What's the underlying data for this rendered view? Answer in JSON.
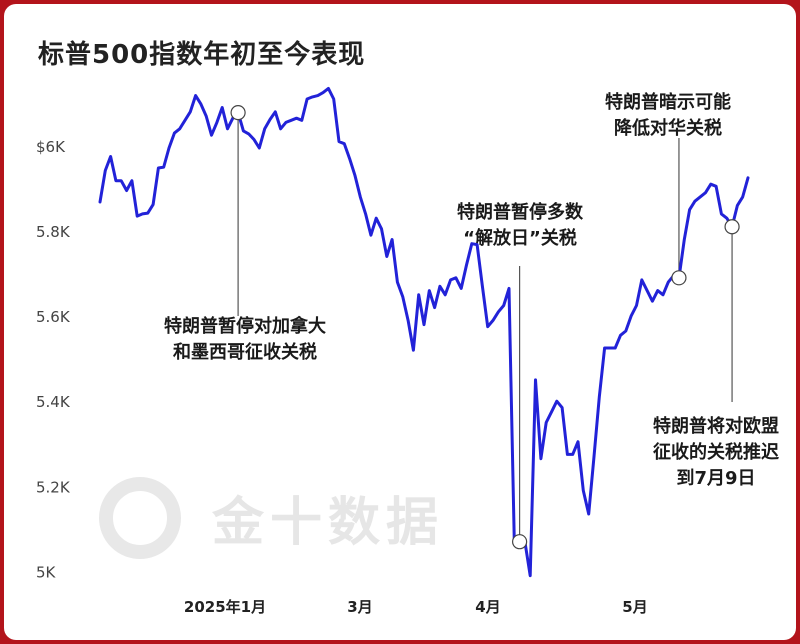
{
  "chart_data": {
    "type": "line",
    "title": "标普500指数年初至今表现",
    "ylim": [
      4980,
      6150
    ],
    "y_ticks": [
      {
        "value": 6000,
        "label": "$6K"
      },
      {
        "value": 5800,
        "label": "5.8K"
      },
      {
        "value": 5600,
        "label": "5.6K"
      },
      {
        "value": 5400,
        "label": "5.4K"
      },
      {
        "value": 5200,
        "label": "5.2K"
      },
      {
        "value": 5000,
        "label": "5K"
      }
    ],
    "x_ticks": [
      "2025年1月",
      "3月",
      "4月",
      "5月"
    ],
    "series": [
      {
        "name": "",
        "color": "#2222d8",
        "values": [
          5868,
          5942,
          5975,
          5918,
          5918,
          5895,
          5918,
          5835,
          5840,
          5842,
          5862,
          5948,
          5950,
          5995,
          6030,
          6040,
          6060,
          6080,
          6118,
          6098,
          6070,
          6025,
          6055,
          6090,
          6040,
          6065,
          6078,
          6035,
          6028,
          6015,
          5995,
          6040,
          6062,
          6080,
          6040,
          6055,
          6060,
          6065,
          6060,
          6110,
          6115,
          6118,
          6125,
          6135,
          6110,
          6010,
          6005,
          5970,
          5930,
          5880,
          5840,
          5790,
          5830,
          5805,
          5740,
          5780,
          5680,
          5645,
          5590,
          5520,
          5650,
          5580,
          5660,
          5620,
          5670,
          5650,
          5685,
          5690,
          5665,
          5720,
          5770,
          5768,
          5670,
          5575,
          5590,
          5610,
          5625,
          5665,
          5070,
          5070,
          5070,
          4990,
          5450,
          5265,
          5350,
          5375,
          5400,
          5385,
          5275,
          5275,
          5305,
          5190,
          5135,
          5270,
          5410,
          5525,
          5525,
          5525,
          5555,
          5565,
          5600,
          5625,
          5685,
          5660,
          5635,
          5660,
          5650,
          5680,
          5695,
          5690,
          5780,
          5850,
          5870,
          5880,
          5890,
          5910,
          5905,
          5840,
          5830,
          5810,
          5860,
          5880,
          5925
        ]
      }
    ],
    "annotations": [
      {
        "point": 26,
        "lines": [
          "特朗普暂停对加拿大",
          "和墨西哥征收关税"
        ]
      },
      {
        "point": 79,
        "lines": [
          "特朗普暂停多数",
          "“解放日”关税"
        ]
      },
      {
        "point": 109,
        "lines": [
          "特朗普暗示可能",
          "降低对华关税"
        ]
      },
      {
        "point": 119,
        "lines": [
          "特朗普将对欧盟",
          "征收的关税推迟",
          "到7月9日"
        ]
      }
    ],
    "grid": false,
    "legend": "none"
  },
  "watermark": {
    "text": "金十数据"
  }
}
